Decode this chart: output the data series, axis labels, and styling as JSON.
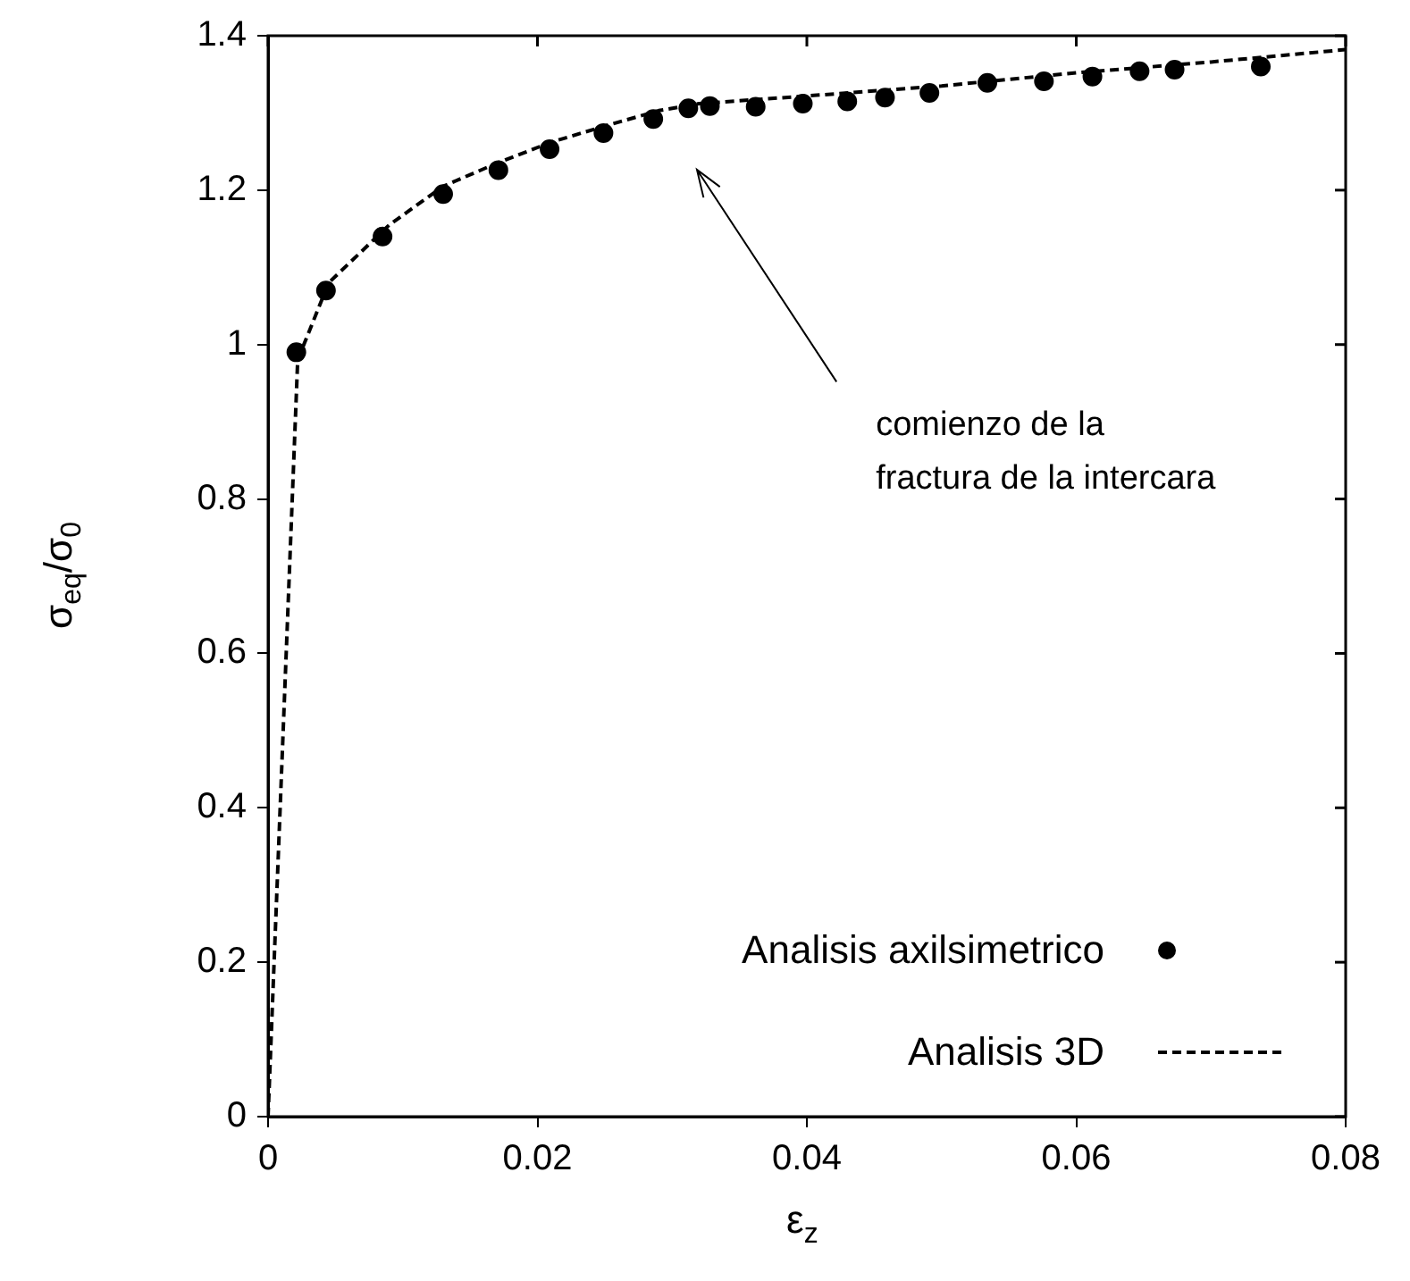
{
  "chart_data": {
    "type": "scatter",
    "xlabel": "ε$_{z}$",
    "ylabel": "σ$_{eq}$/σ$_{0}$",
    "xlim": [
      0,
      0.08
    ],
    "xticks": [
      0,
      0.02,
      0.04,
      0.06,
      0.08
    ],
    "ylim": [
      0,
      1.4
    ],
    "yticks": [
      0,
      0.2,
      0.4,
      0.6,
      0.8,
      1,
      1.2,
      1.4
    ],
    "grid": false,
    "legend": "bottom right",
    "series": [
      {
        "name": "Analisis axilsimetrico",
        "color": "#000000",
        "marker": "circle",
        "x": [
          0.0021,
          0.0043,
          0.0085,
          0.013,
          0.0171,
          0.0209,
          0.0249,
          0.0286,
          0.0312,
          0.0328,
          0.0362,
          0.0397,
          0.043,
          0.0458,
          0.0491,
          0.0534,
          0.0576,
          0.0612,
          0.0647,
          0.0673,
          0.0737
        ],
        "values": [
          0.99,
          1.07,
          1.14,
          1.195,
          1.226,
          1.253,
          1.274,
          1.292,
          1.306,
          1.309,
          1.308,
          1.312,
          1.315,
          1.32,
          1.326,
          1.339,
          1.341,
          1.347,
          1.354,
          1.356,
          1.36
        ]
      },
      {
        "name": "Analisis 3D",
        "type": "line",
        "color": "#000000",
        "marker": "none",
        "line_style": "dashed",
        "x": [
          0,
          0.0022,
          0.0045,
          0.009,
          0.013,
          0.017,
          0.021,
          0.025,
          0.029,
          0.032,
          0.04,
          0.05,
          0.06,
          0.07,
          0.08
        ],
        "values": [
          0,
          0.98,
          1.08,
          1.155,
          1.205,
          1.235,
          1.262,
          1.283,
          1.303,
          1.312,
          1.322,
          1.335,
          1.352,
          1.366,
          1.382
        ]
      }
    ],
    "annotations": [
      "comienzo de la\nfractura de la intercara"
    ]
  }
}
